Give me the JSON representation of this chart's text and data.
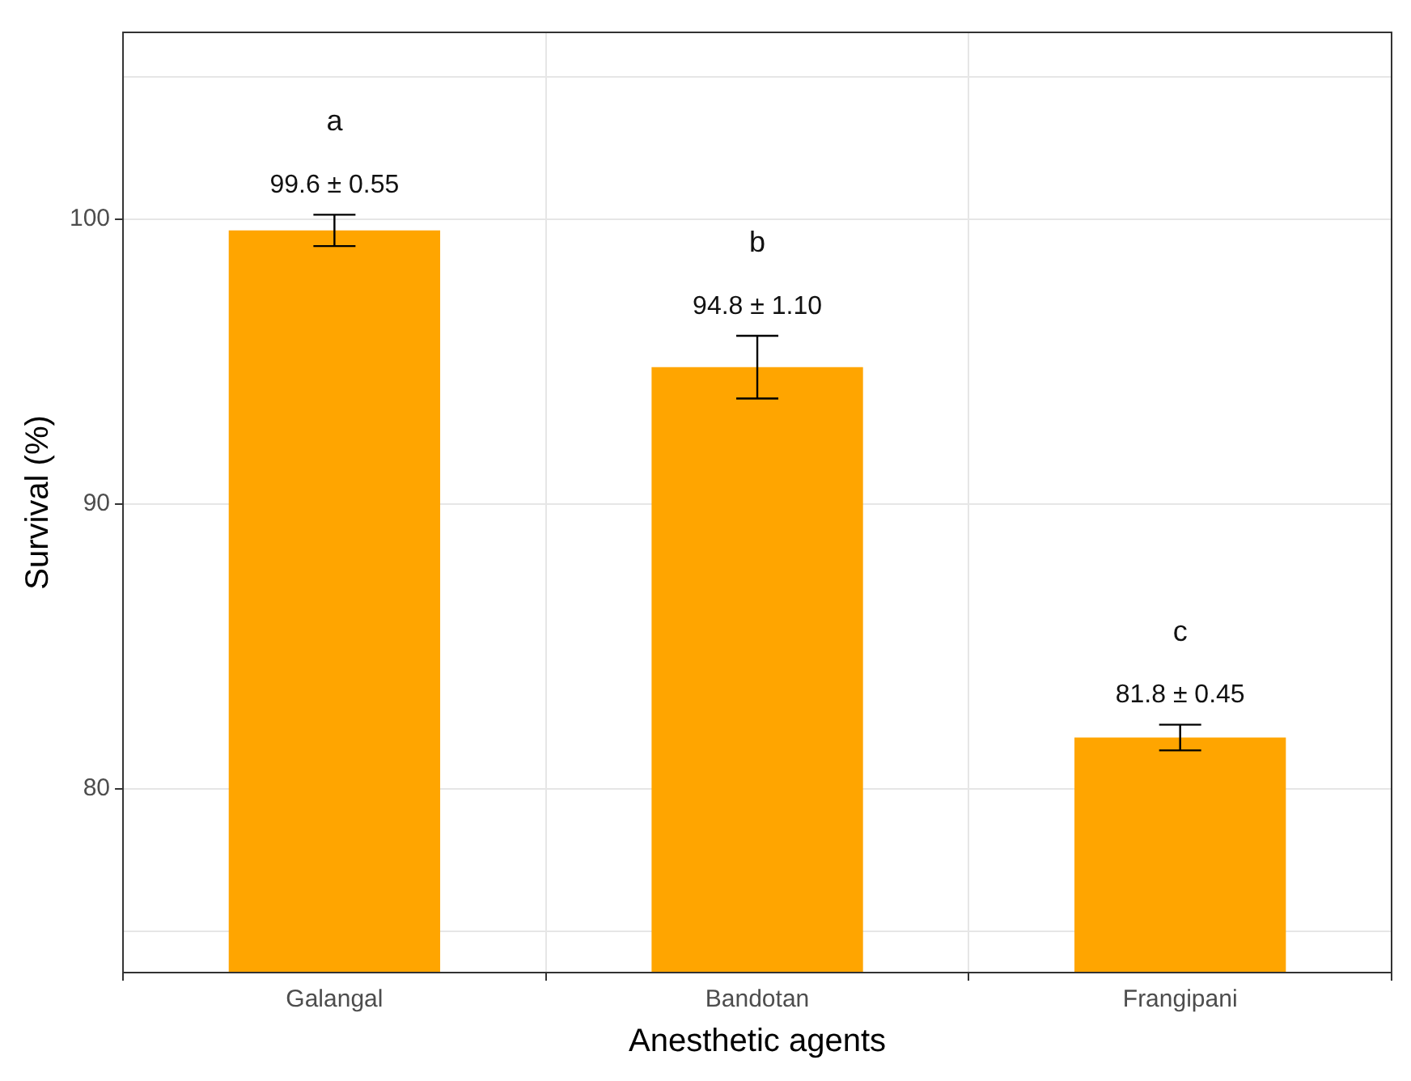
{
  "chart_data": {
    "type": "bar",
    "xlabel": "Anesthetic agents",
    "ylabel": "Survival (%)",
    "categories": [
      "Galangal",
      "Bandotan",
      "Frangipani"
    ],
    "values": [
      99.6,
      94.8,
      81.8
    ],
    "errors": [
      0.55,
      1.1,
      0.45
    ],
    "value_labels": [
      "99.6 ± 0.55",
      "94.8 ± 1.10",
      "81.8 ± 0.45"
    ],
    "color": "#ffa500",
    "ylim": [
      73.55,
      106.55
    ],
    "yticks": [
      {
        "value": 75,
        "label": null
      },
      80,
      90,
      100,
      {
        "value": 105,
        "label": null
      }
    ],
    "grid": true,
    "annotations": [
      "a",
      "b",
      "c"
    ]
  }
}
